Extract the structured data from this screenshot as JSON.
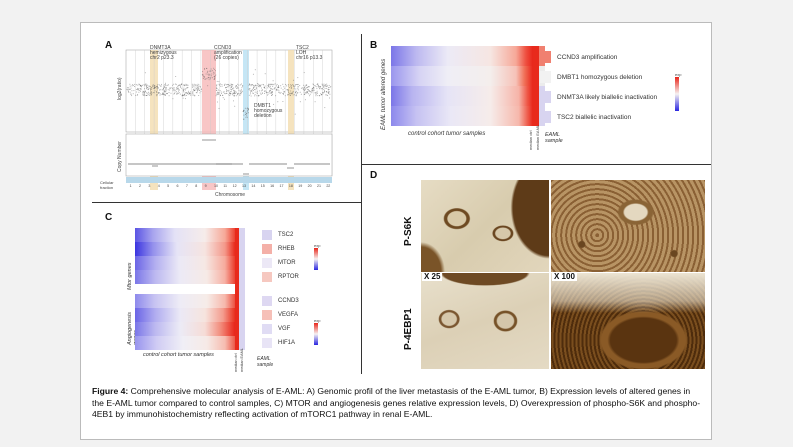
{
  "panel_a": {
    "letter": "A",
    "ylabel_top": "log2(ratio)",
    "ylabel_bottom": "Copy Number",
    "cellular_fraction_label": "Cellular fraction",
    "xlabel": "Chromosome",
    "annotations": [
      {
        "text": "DNMT3A",
        "sub": "hemizygous",
        "sub2": "chr2 p23.3"
      },
      {
        "text": "CCND3",
        "sub": "amplification",
        "sub2": "(26 copies)"
      },
      {
        "text": "TSC2",
        "sub": "LOH",
        "sub2": "chr16 p13.3"
      },
      {
        "text": "DMBT1",
        "sub": "homozygous",
        "sub2": "deletion"
      }
    ],
    "chromosomes": [
      "1",
      "2",
      "3",
      "4",
      "5",
      "6",
      "7",
      "8",
      "9",
      "10",
      "11",
      "12",
      "13",
      "14",
      "15",
      "16",
      "17",
      "18",
      "19",
      "20",
      "21",
      "22"
    ]
  },
  "panel_b": {
    "letter": "B",
    "side_label": "EAML tumor altered genes",
    "bottom_label": "control cohort tumor samples",
    "median_labels": [
      "median ctrl",
      "median EAML"
    ],
    "eaml_label": "EAML sample",
    "legend_title": "exp",
    "legend_ticks": [
      "2",
      "1",
      "0",
      "-1",
      "-2"
    ],
    "rows": [
      {
        "gene": "CCND3 amplification",
        "color": "#f08070"
      },
      {
        "gene": "DMBT1 homozygous deletion",
        "color": "#f2f2f2"
      },
      {
        "gene": "DNMT3A likely biallelic inactivation",
        "color": "#d8d4f0"
      },
      {
        "gene": "TSC2 biallelic inactivation",
        "color": "#d8d4f0"
      }
    ]
  },
  "panel_c": {
    "letter": "C",
    "group1_label": "Mtor genes",
    "group2_label": "Angiogenesis genes",
    "bottom_label": "control cohort tumor samples",
    "median_labels": [
      "median ctrl",
      "median EAML"
    ],
    "eaml_label": "EAML sample",
    "legend_title": "exp",
    "legend_ticks": [
      "2",
      "1",
      "0",
      "-1",
      "-2"
    ],
    "group1": [
      {
        "gene": "TSC2",
        "color": "#d8d4f0"
      },
      {
        "gene": "RHEB",
        "color": "#f4b0a8"
      },
      {
        "gene": "MTOR",
        "color": "#ece8f6"
      },
      {
        "gene": "RPTOR",
        "color": "#f6c8c0"
      }
    ],
    "group2": [
      {
        "gene": "CCND3",
        "color": "#ded8f2"
      },
      {
        "gene": "VEGFA",
        "color": "#f6c0b8"
      },
      {
        "gene": "VGF",
        "color": "#e0dcf4"
      },
      {
        "gene": "HIF1A",
        "color": "#e8e4f6"
      }
    ]
  },
  "panel_d": {
    "letter": "D",
    "row1_label": "P-S6K",
    "row2_label": "P-4EBP1",
    "mag1": "X 25",
    "mag2": "X 100"
  },
  "caption": {
    "bold": "Figure 4:",
    "text": " Comprehensive molecular analysis of E-AML: A) Genomic profil of the liver metastasis of the E-AML tumor, B) Expression levels of altered genes in the E-AML tumor compared to control samples, C) MTOR and angiogenesis genes relative expression levels, D) Overexpression of phospho-S6K and phospho-4EB1 by immunohistochemistry reflecting activation of mTORC1 pathway in renal E-AML."
  }
}
